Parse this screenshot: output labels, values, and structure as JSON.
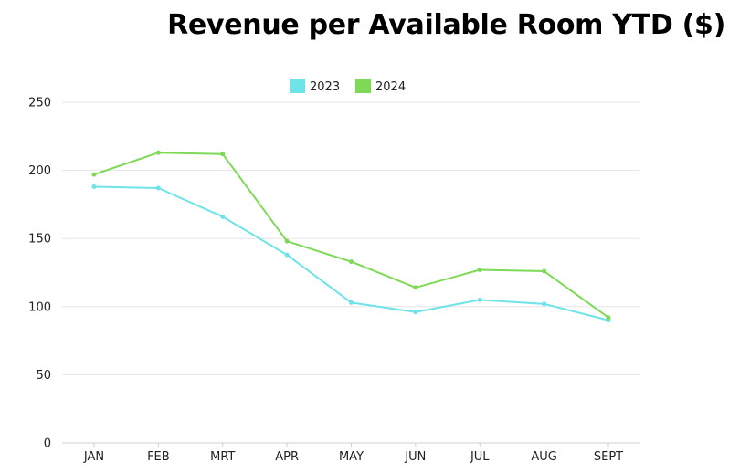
{
  "chart_data": {
    "type": "line",
    "title": "Revenue per Available Room YTD ($)",
    "xlabel": "",
    "ylabel": "",
    "categories": [
      "JAN",
      "FEB",
      "MRT",
      "APR",
      "MAY",
      "JUN",
      "JUL",
      "AUG",
      "SEPT"
    ],
    "ylim": [
      0,
      250
    ],
    "yticks": [
      0,
      50,
      100,
      150,
      200,
      250
    ],
    "grid": true,
    "legend_position": "top-center",
    "series": [
      {
        "name": "2023",
        "color": "#6ee3e8",
        "values": [
          188,
          187,
          166,
          138,
          103,
          96,
          105,
          102,
          90
        ]
      },
      {
        "name": "2024",
        "color": "#7ed957",
        "values": [
          197,
          213,
          212,
          148,
          133,
          114,
          127,
          126,
          92
        ]
      }
    ]
  }
}
